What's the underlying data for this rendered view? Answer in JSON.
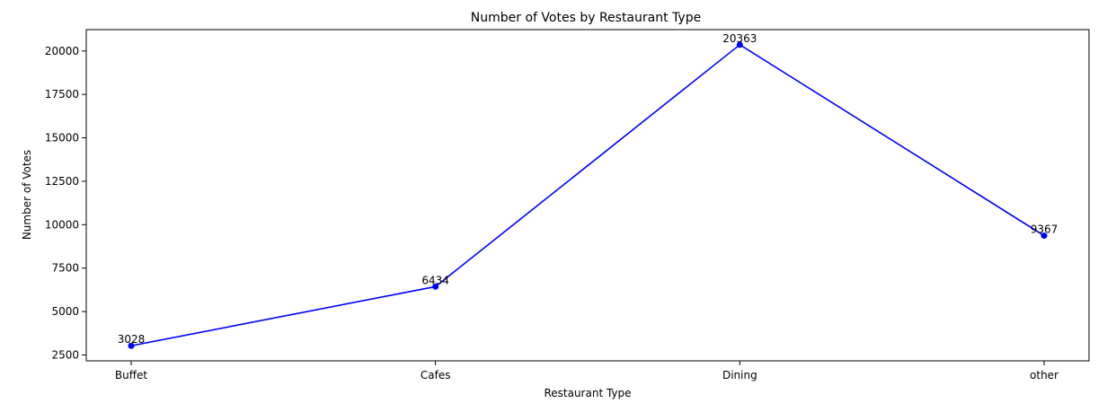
{
  "chart_data": {
    "type": "line",
    "title": "Number of Votes by Restaurant Type",
    "xlabel": "Restaurant Type",
    "ylabel": "Number of Votes",
    "categories": [
      "Buffet",
      "Cafes",
      "Dining",
      "other"
    ],
    "series": [
      {
        "values": [
          3028,
          6434,
          20363,
          9367
        ],
        "color": "#0000ff",
        "marker": "circle"
      }
    ],
    "data_labels": [
      "3028",
      "6434",
      "20363",
      "9367"
    ],
    "yticks": [
      2500,
      5000,
      7500,
      10000,
      12500,
      15000,
      17500,
      20000
    ],
    "ytick_labels": [
      "2500",
      "5000",
      "7500",
      "10000",
      "12500",
      "15000",
      "17500",
      "20000"
    ],
    "ylim": [
      2161,
      21231
    ],
    "grid": false,
    "legend": null
  }
}
